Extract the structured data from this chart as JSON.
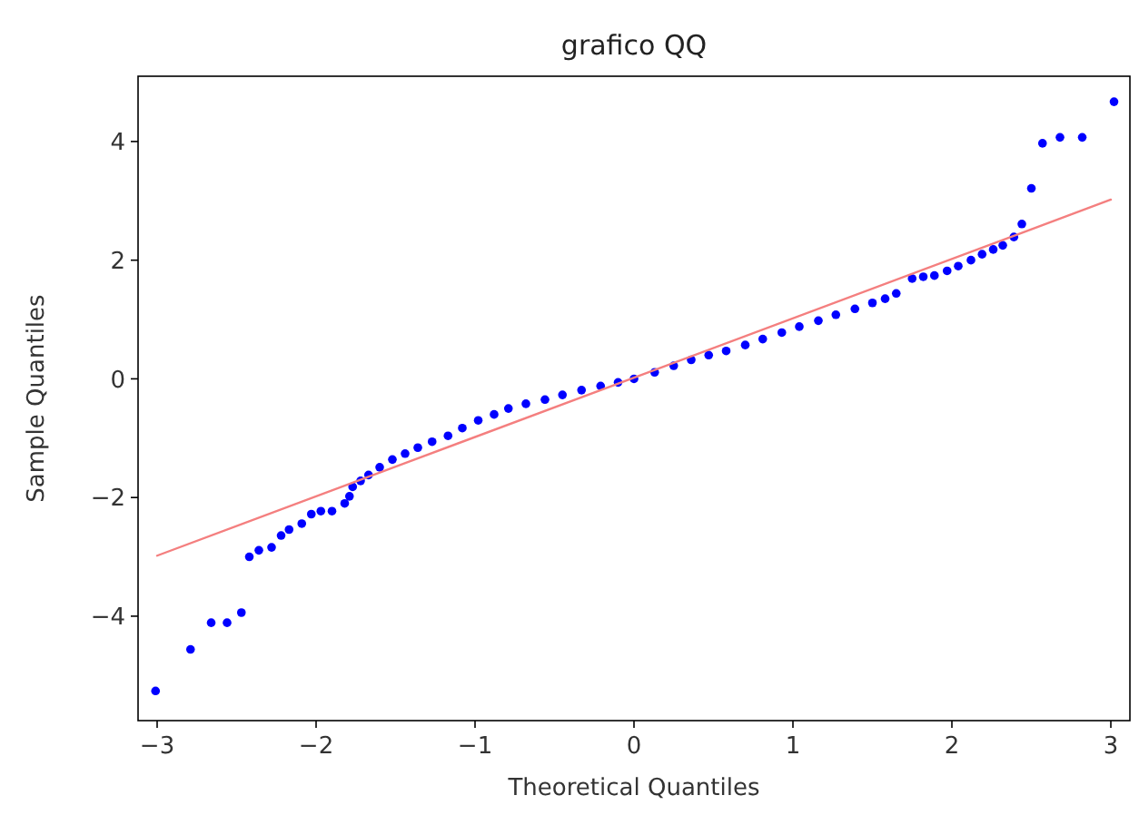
{
  "chart_data": {
    "type": "scatter",
    "title": "grafico QQ",
    "xlabel": "Theoretical Quantiles",
    "ylabel": "Sample Quantiles",
    "xlim": [
      -3.12,
      3.12
    ],
    "ylim": [
      -5.76,
      5.1
    ],
    "xticks": [
      {
        "value": -3,
        "label": "−3"
      },
      {
        "value": -2,
        "label": "−2"
      },
      {
        "value": -1,
        "label": "−1"
      },
      0,
      1,
      2,
      3
    ],
    "yticks": [
      {
        "value": -4,
        "label": "−4"
      },
      {
        "value": -2,
        "label": "−2"
      },
      0,
      2,
      4
    ],
    "grid": false,
    "series": [
      {
        "marker": "circle",
        "color": "#0000ff",
        "x": [
          -3.01,
          -2.79,
          -2.66,
          -2.56,
          -2.47,
          -2.42,
          -2.36,
          -2.28,
          -2.22,
          -2.17,
          -2.09,
          -2.03,
          -1.97,
          -1.9,
          -1.82,
          -1.79,
          -1.77,
          -1.72,
          -1.67,
          -1.6,
          -1.52,
          -1.44,
          -1.36,
          -1.27,
          -1.17,
          -1.08,
          -0.98,
          -0.88,
          -0.79,
          -0.68,
          -0.56,
          -0.45,
          -0.33,
          -0.21,
          -0.1,
          0.0,
          0.13,
          0.25,
          0.36,
          0.47,
          0.58,
          0.7,
          0.81,
          0.93,
          1.04,
          1.16,
          1.27,
          1.39,
          1.5,
          1.58,
          1.65,
          1.75,
          1.82,
          1.89,
          1.97,
          2.04,
          2.12,
          2.19,
          2.26,
          2.32,
          2.39,
          2.44,
          2.5,
          2.57,
          2.68,
          2.82,
          3.02
        ],
        "values": [
          -5.26,
          -4.56,
          -4.11,
          -4.11,
          -3.94,
          -3.0,
          -2.89,
          -2.84,
          -2.64,
          -2.54,
          -2.44,
          -2.28,
          -2.23,
          -2.23,
          -2.1,
          -1.98,
          -1.82,
          -1.72,
          -1.62,
          -1.49,
          -1.36,
          -1.26,
          -1.16,
          -1.06,
          -0.96,
          -0.83,
          -0.7,
          -0.6,
          -0.5,
          -0.42,
          -0.35,
          -0.27,
          -0.19,
          -0.12,
          -0.06,
          0.0,
          0.11,
          0.22,
          0.32,
          0.4,
          0.47,
          0.57,
          0.67,
          0.78,
          0.88,
          0.98,
          1.08,
          1.18,
          1.28,
          1.35,
          1.44,
          1.69,
          1.72,
          1.74,
          1.82,
          1.9,
          2.0,
          2.1,
          2.18,
          2.25,
          2.39,
          2.61,
          3.21,
          3.97,
          4.07,
          4.07,
          4.67
        ]
      },
      {
        "type": "line",
        "marker": "none",
        "color": "#f47f7f",
        "x": [
          -3,
          3
        ],
        "values": [
          -2.98,
          3.02
        ]
      }
    ]
  }
}
